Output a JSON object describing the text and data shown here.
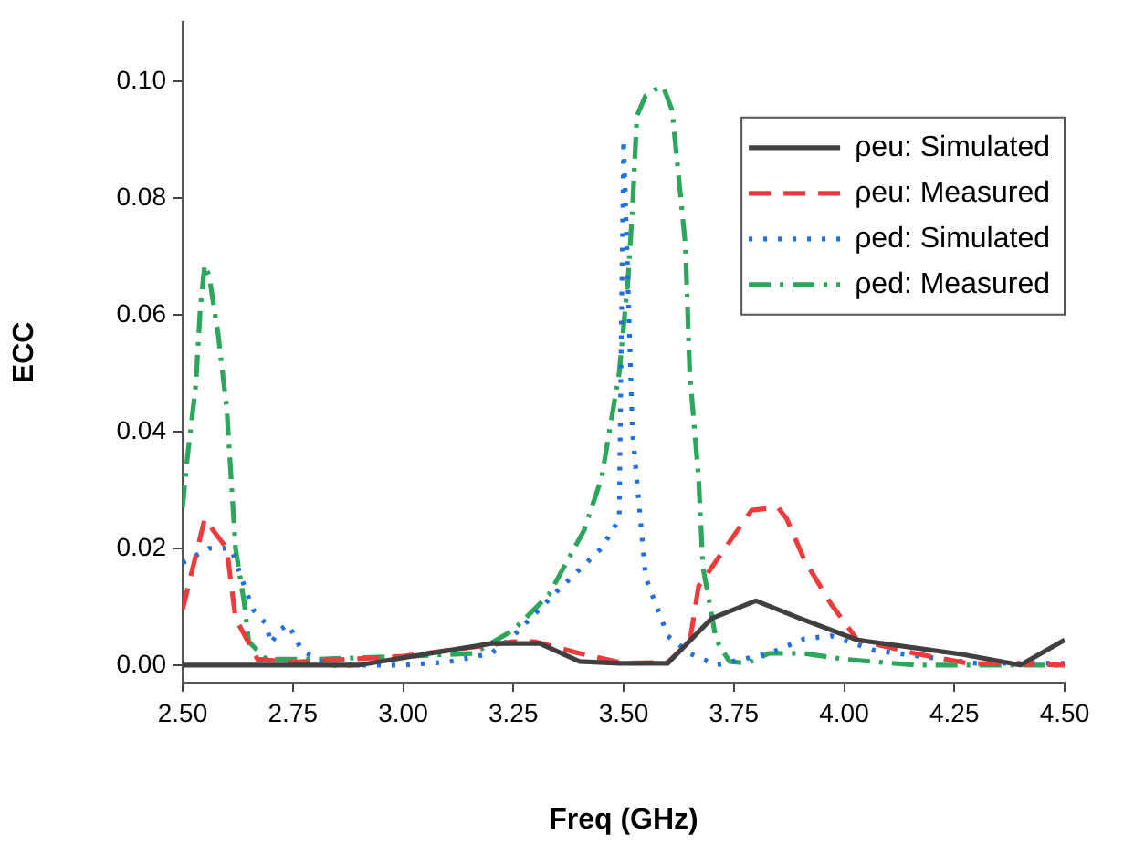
{
  "chart_data": {
    "type": "line",
    "xlabel": "Freq (GHz)",
    "ylabel": "ECC",
    "xlim": [
      2.5,
      4.5
    ],
    "xticks": [
      {
        "value": 2.5,
        "label": "2.50"
      },
      {
        "value": 2.75,
        "label": "2.75"
      },
      {
        "value": 3,
        "label": "3.00"
      },
      {
        "value": 3.25,
        "label": "3.25"
      },
      {
        "value": 3.5,
        "label": "3.50"
      },
      {
        "value": 3.75,
        "label": "3.75"
      },
      {
        "value": 4,
        "label": "4.00"
      },
      {
        "value": 4.25,
        "label": "4.25"
      },
      {
        "value": 4.5,
        "label": "4.50"
      }
    ],
    "ylim": [
      -0.003,
      0.11
    ],
    "yticks": [
      {
        "value": 0,
        "label": "0.00"
      },
      {
        "value": 0.02,
        "label": "0.02"
      },
      {
        "value": 0.04,
        "label": "0.04"
      },
      {
        "value": 0.06,
        "label": "0.06"
      },
      {
        "value": 0.08,
        "label": "0.08"
      },
      {
        "value": 0.1,
        "label": "0.10"
      }
    ],
    "grid": false,
    "legend": "top right",
    "marker": "none",
    "series": [
      {
        "name": "ρeu: Simulated",
        "color": "#404040",
        "line_style": "solid",
        "x": [
          2.5,
          2.9,
          3.2,
          3.31,
          3.4,
          3.49,
          3.6,
          3.7,
          3.8,
          3.9,
          4.03,
          4.27,
          4.4,
          4.5
        ],
        "values": [
          0,
          0,
          0.0037,
          0.0037,
          0.0006,
          0.0003,
          0.0003,
          0.008,
          0.011,
          0.008,
          0.0043,
          0.0018,
          0,
          0.0043
        ]
      },
      {
        "name": "ρeu: Measured",
        "color": "#ef3b3b",
        "line_style": "dashed",
        "x": [
          2.5,
          2.55,
          2.6,
          2.62,
          2.67,
          2.75,
          3.0,
          3.25,
          3.3,
          3.4,
          3.5,
          3.6,
          3.65,
          3.67,
          3.73,
          3.79,
          3.85,
          3.87,
          3.91,
          3.97,
          4.03,
          4.16,
          4.28,
          4.5
        ],
        "values": [
          0.0095,
          0.025,
          0.02,
          0.008,
          0.001,
          0.0005,
          0.0015,
          0.004,
          0.004,
          0.002,
          0.0003,
          0.0005,
          0.004,
          0.0135,
          0.02,
          0.0265,
          0.027,
          0.025,
          0.018,
          0.0105,
          0.0043,
          0.002,
          0.0003,
          0
        ]
      },
      {
        "name": "ρed: Simulated",
        "color": "#1f6fe0",
        "line_style": "dotted",
        "x": [
          2.5,
          2.56,
          2.61,
          2.64,
          2.66,
          2.69,
          2.7,
          2.72,
          2.74,
          2.77,
          2.83,
          3.0,
          3.1,
          3.2,
          3.25,
          3.35,
          3.45,
          3.49,
          3.5,
          3.52,
          3.55,
          3.6,
          3.65,
          3.71,
          3.83,
          3.91,
          3.97,
          4.07,
          4.3,
          4.5
        ],
        "values": [
          0.0175,
          0.02,
          0.02,
          0.0135,
          0.0095,
          0.007,
          0.0037,
          0.006,
          0.007,
          0.0025,
          0,
          0,
          0.0005,
          0.002,
          0.005,
          0.0127,
          0.02,
          0.025,
          0.09,
          0.04,
          0.015,
          0.005,
          0.002,
          0,
          0.002,
          0.0045,
          0.005,
          0.0025,
          0.0003,
          0.0003
        ]
      },
      {
        "name": "ρed: Measured",
        "color": "#2ca65a",
        "line_style": "dashdot",
        "x": [
          2.5,
          2.51,
          2.53,
          2.54,
          2.55,
          2.56,
          2.58,
          2.6,
          2.61,
          2.62,
          2.64,
          2.65,
          2.69,
          2.8,
          3.0,
          3.16,
          3.25,
          3.33,
          3.41,
          3.45,
          3.49,
          3.51,
          3.52,
          3.53,
          3.55,
          3.57,
          3.59,
          3.61,
          3.64,
          3.65,
          3.67,
          3.68,
          3.71,
          3.74,
          3.78,
          3.83,
          3.91,
          4.0,
          4.16,
          4.5
        ],
        "values": [
          0.027,
          0.035,
          0.048,
          0.061,
          0.0685,
          0.0667,
          0.057,
          0.044,
          0.032,
          0.02,
          0.0105,
          0.004,
          0.001,
          0.001,
          0.0015,
          0.002,
          0.006,
          0.012,
          0.023,
          0.032,
          0.05,
          0.066,
          0.078,
          0.094,
          0.0975,
          0.0985,
          0.099,
          0.095,
          0.072,
          0.05,
          0.032,
          0.0167,
          0.0043,
          0.0006,
          0.0003,
          0.002,
          0.002,
          0.001,
          0,
          0
        ]
      }
    ]
  }
}
